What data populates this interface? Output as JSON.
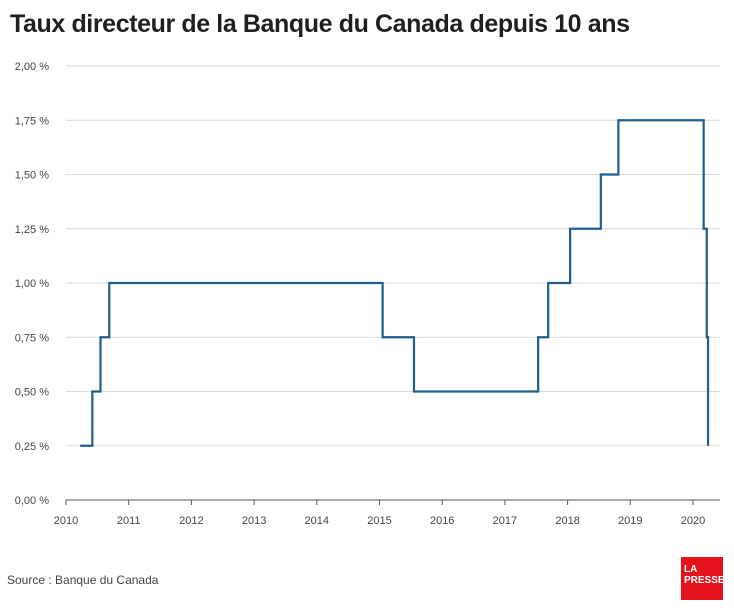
{
  "title": "Taux directeur de la Banque du Canada depuis 10 ans",
  "source": "Source : Banque du Canada",
  "logo": {
    "line1": "LA",
    "line2": "PRESSE",
    "color": "#e3121b"
  },
  "chart_data": {
    "type": "line",
    "step": true,
    "title": "Taux directeur de la Banque du Canada depuis 10 ans",
    "xlabel": "",
    "ylabel": "",
    "xlim": [
      2010.0,
      2020.3
    ],
    "ylim": [
      0,
      2.0
    ],
    "xticks": [
      {
        "value": 2010,
        "label": "2010"
      },
      {
        "value": 2011,
        "label": "2011"
      },
      {
        "value": 2012,
        "label": "2012"
      },
      {
        "value": 2013,
        "label": "2013"
      },
      {
        "value": 2014,
        "label": "2014"
      },
      {
        "value": 2015,
        "label": "2015"
      },
      {
        "value": 2016,
        "label": "2016"
      },
      {
        "value": 2017,
        "label": "2017"
      },
      {
        "value": 2018,
        "label": "2018"
      },
      {
        "value": 2019,
        "label": "2019"
      },
      {
        "value": 2020,
        "label": "2020"
      }
    ],
    "yticks": [
      {
        "value": 0,
        "label": "0,00 %"
      },
      {
        "value": 0.25,
        "label": "0,25 %"
      },
      {
        "value": 0.5,
        "label": "0,50 %"
      },
      {
        "value": 0.75,
        "label": "0,75 %"
      },
      {
        "value": 1.0,
        "label": "1,00 %"
      },
      {
        "value": 1.25,
        "label": "1,25 %"
      },
      {
        "value": 1.5,
        "label": "1,50 %"
      },
      {
        "value": 1.75,
        "label": "1,75 %"
      },
      {
        "value": 2.0,
        "label": "2,00 %"
      }
    ],
    "grid": true,
    "color": "#1f5f8b",
    "series": [
      {
        "x": [
          2010.29,
          2010.42,
          2010.55,
          2010.69,
          2015.05,
          2015.55,
          2017.53,
          2017.69,
          2018.04,
          2018.53,
          2018.81,
          2020.17,
          2020.22,
          2020.24
        ],
        "y": [
          0.25,
          0.5,
          0.75,
          1.0,
          0.75,
          0.5,
          0.75,
          1.0,
          1.25,
          1.5,
          1.75,
          1.25,
          0.75,
          0.25
        ]
      }
    ]
  }
}
